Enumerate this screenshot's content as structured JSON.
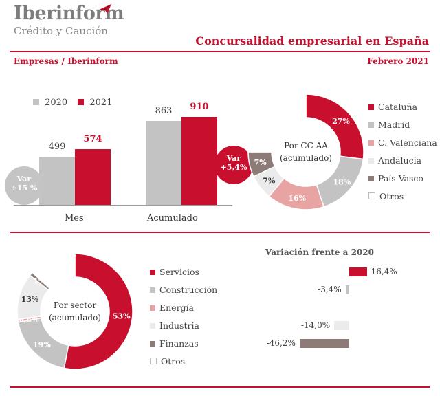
{
  "brand": {
    "name": "Iberinform",
    "tagline": "Crédito y Caución"
  },
  "title": "Concursalidad empresarial en España",
  "subtitle_left": "Empresas / Iberinform",
  "subtitle_right": "Febrero 2021",
  "colors": {
    "red": "#c8102e",
    "gray": "#c3c3c3",
    "pink": "#e8a3a3",
    "light": "#ebebeb",
    "brown": "#8c7b76",
    "white": "#ffffff"
  },
  "chart_data": [
    {
      "type": "bar",
      "categories": [
        "Mes",
        "Acumulado"
      ],
      "series": [
        {
          "name": "2020",
          "values": [
            499,
            863
          ],
          "color": "#c3c3c3"
        },
        {
          "name": "2021",
          "values": [
            574,
            910
          ],
          "color": "#c8102e"
        }
      ],
      "value_labels": [
        [
          "499",
          "574"
        ],
        [
          "863",
          "910"
        ]
      ],
      "annotations": [
        {
          "lines": [
            "Var",
            "+15 %"
          ],
          "style": "gray-bubble"
        },
        {
          "lines": [
            "Var",
            "+5,4%"
          ],
          "style": "red-bubble"
        }
      ]
    },
    {
      "type": "pie",
      "center_label": [
        "Por CC AA",
        "(acumulado)"
      ],
      "labels": [
        "Cataluña",
        "Madrid",
        "C. Valenciana",
        "Andalucia",
        "País Vasco",
        "Otros"
      ],
      "values": [
        27,
        18,
        16,
        7,
        7,
        25
      ],
      "slice_labels": [
        "27%",
        "18%",
        "16%",
        "7%",
        "7%",
        ""
      ],
      "colors": [
        "#c8102e",
        "#c3c3c3",
        "#e8a3a3",
        "#ebebeb",
        "#8c7b76",
        "#ffffff"
      ]
    },
    {
      "type": "pie",
      "center_label": [
        "Por sector",
        "(acumulado)"
      ],
      "labels": [
        "Servicios",
        "Construcción",
        "Energía",
        "Industria",
        "Finanzas",
        "Otros"
      ],
      "values": [
        53,
        19,
        0.8,
        13,
        1,
        13.2
      ],
      "slice_labels": [
        "53%",
        "19%",
        "0,8%",
        "13%",
        "1%",
        ""
      ],
      "colors": [
        "#c8102e",
        "#c3c3c3",
        "#e8a3a3",
        "#ebebeb",
        "#8c7b76",
        "#ffffff"
      ]
    },
    {
      "type": "bar",
      "orientation": "horizontal",
      "title": "Variación frente a 2020",
      "categories": [
        "Servicios",
        "Construcción",
        "Energía",
        "Industria",
        "Finanzas"
      ],
      "values": [
        16.4,
        -3.4,
        null,
        -14.0,
        -46.2
      ],
      "value_labels": [
        "16,4%",
        "-3,4%",
        "",
        "-14,0%",
        "-46,2%"
      ],
      "colors": [
        "#c8102e",
        "#c3c3c3",
        "#e8a3a3",
        "#ebebeb",
        "#8c7b76"
      ]
    }
  ]
}
